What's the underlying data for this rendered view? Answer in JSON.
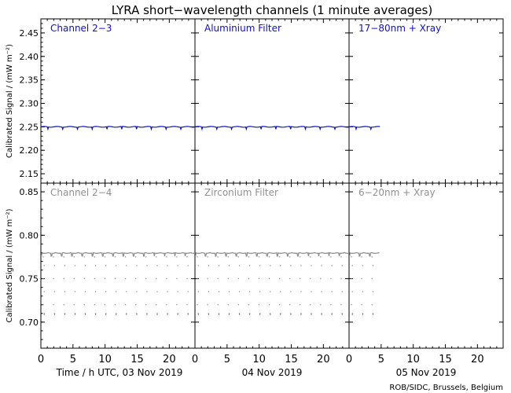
{
  "chart_data": {
    "type": "line",
    "title": "LYRA short−wavelength channels (1 minute averages)",
    "credit": "ROB/SIDC, Brussels, Belgium",
    "colors": {
      "top_series": "#1010c0",
      "bottom_series": "#909090",
      "axis": "#000000"
    },
    "x_axis": {
      "unit": "h UTC",
      "day_range": [
        0,
        24
      ],
      "ticks": [
        0,
        5,
        10,
        15,
        20
      ],
      "day_labels": [
        "Time / h UTC, 03 Nov 2019",
        "04 Nov 2019",
        "05 Nov 2019"
      ],
      "data_end_hour_day3": 4.8
    },
    "panels_top": {
      "ylabel": "Calibrated Signal / (mW m⁻²)",
      "ylim": [
        2.13,
        2.48
      ],
      "yticks": [
        "2.15",
        "2.20",
        "2.25",
        "2.30",
        "2.35",
        "2.40",
        "2.45"
      ],
      "channels": [
        "Channel 2−3",
        "Aluminium Filter",
        "17−80nm + Xray"
      ],
      "baseline": 2.25,
      "dip_value": 2.245
    },
    "panels_bottom": {
      "ylabel": "Calibrated Signal / (mW m⁻²)",
      "ylim": [
        0.67,
        0.86
      ],
      "yticks": [
        "0.70",
        "0.75",
        "0.80",
        "0.85"
      ],
      "channels": [
        "Channel 2−4",
        "Zirconium Filter",
        "6−20nm + Xray"
      ],
      "baseline": 0.78,
      "scatter_levels": [
        0.775,
        0.765,
        0.75,
        0.735,
        0.72,
        0.71
      ],
      "dip_period_h": 1.6
    }
  }
}
